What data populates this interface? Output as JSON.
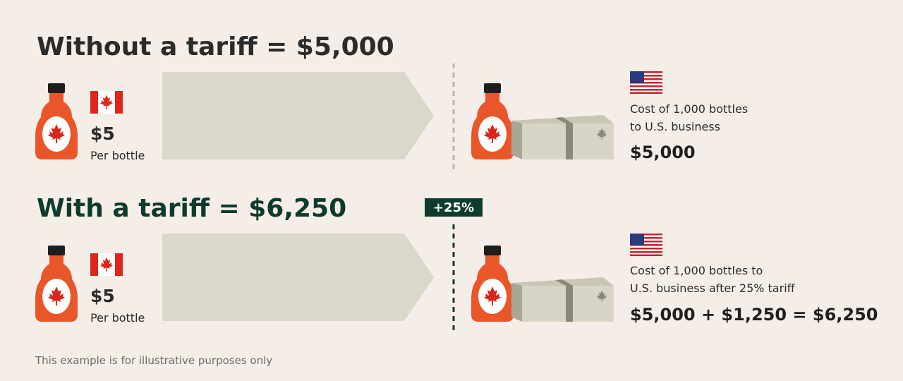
{
  "rows": [
    {
      "title": "Without a tariff = $5,000",
      "price": "$5",
      "unit": "Per bottle",
      "cost_label": [
        "Cost of 1,000 bottles",
        "to U.S. business"
      ],
      "total": "$5,000"
    },
    {
      "title": "With a tariff = $6,250",
      "price": "$5",
      "unit": "Per bottle",
      "cost_label": [
        "Cost of 1,000 bottles to",
        "U.S. business after 25% tariff"
      ],
      "total": "$5,000 + $1,250 = $6,250"
    }
  ],
  "badge": "+25%",
  "footnote": "This example is for illustrative purposes only"
}
